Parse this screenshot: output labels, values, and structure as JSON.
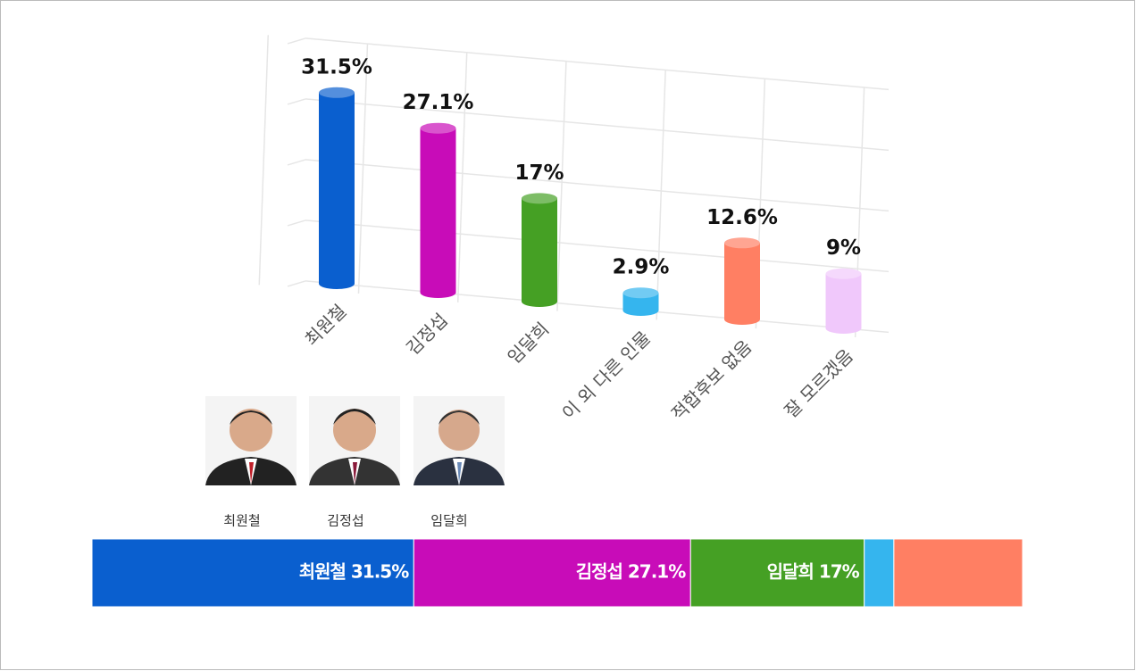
{
  "chart_data": [
    {
      "type": "cylinder_bar",
      "categories": [
        "최원철",
        "김정섭",
        "임달희",
        "이 외 다른 인물",
        "적합후보 없음",
        "잘 모르겠음"
      ],
      "values": [
        31.5,
        27.1,
        17,
        2.9,
        12.6,
        9
      ],
      "value_labels": [
        "31.5%",
        "27.1%",
        "17%",
        "2.9%",
        "12.6%",
        "9%"
      ],
      "colors": [
        "#0a5fcf",
        "#c80cb8",
        "#45a024",
        "#35b5ee",
        "#ff7f63",
        "#f0c8fb"
      ],
      "ylim": [
        0,
        40
      ],
      "yticks": [
        0,
        10,
        20,
        30,
        40
      ],
      "grid": true
    },
    {
      "type": "stacked_hbar",
      "captions": [
        "최원철",
        "김정섭",
        "임달희"
      ],
      "values": [
        31.5,
        27.1,
        17,
        2.9,
        12.6
      ],
      "value_labels": [
        "최원철 31.5%",
        "김정섭 27.1%",
        "임달희 17%",
        null,
        null
      ],
      "colors": [
        "#0a5fcf",
        "#c80cb8",
        "#45a024",
        "#35b5ee",
        "#ff7f63"
      ]
    }
  ]
}
